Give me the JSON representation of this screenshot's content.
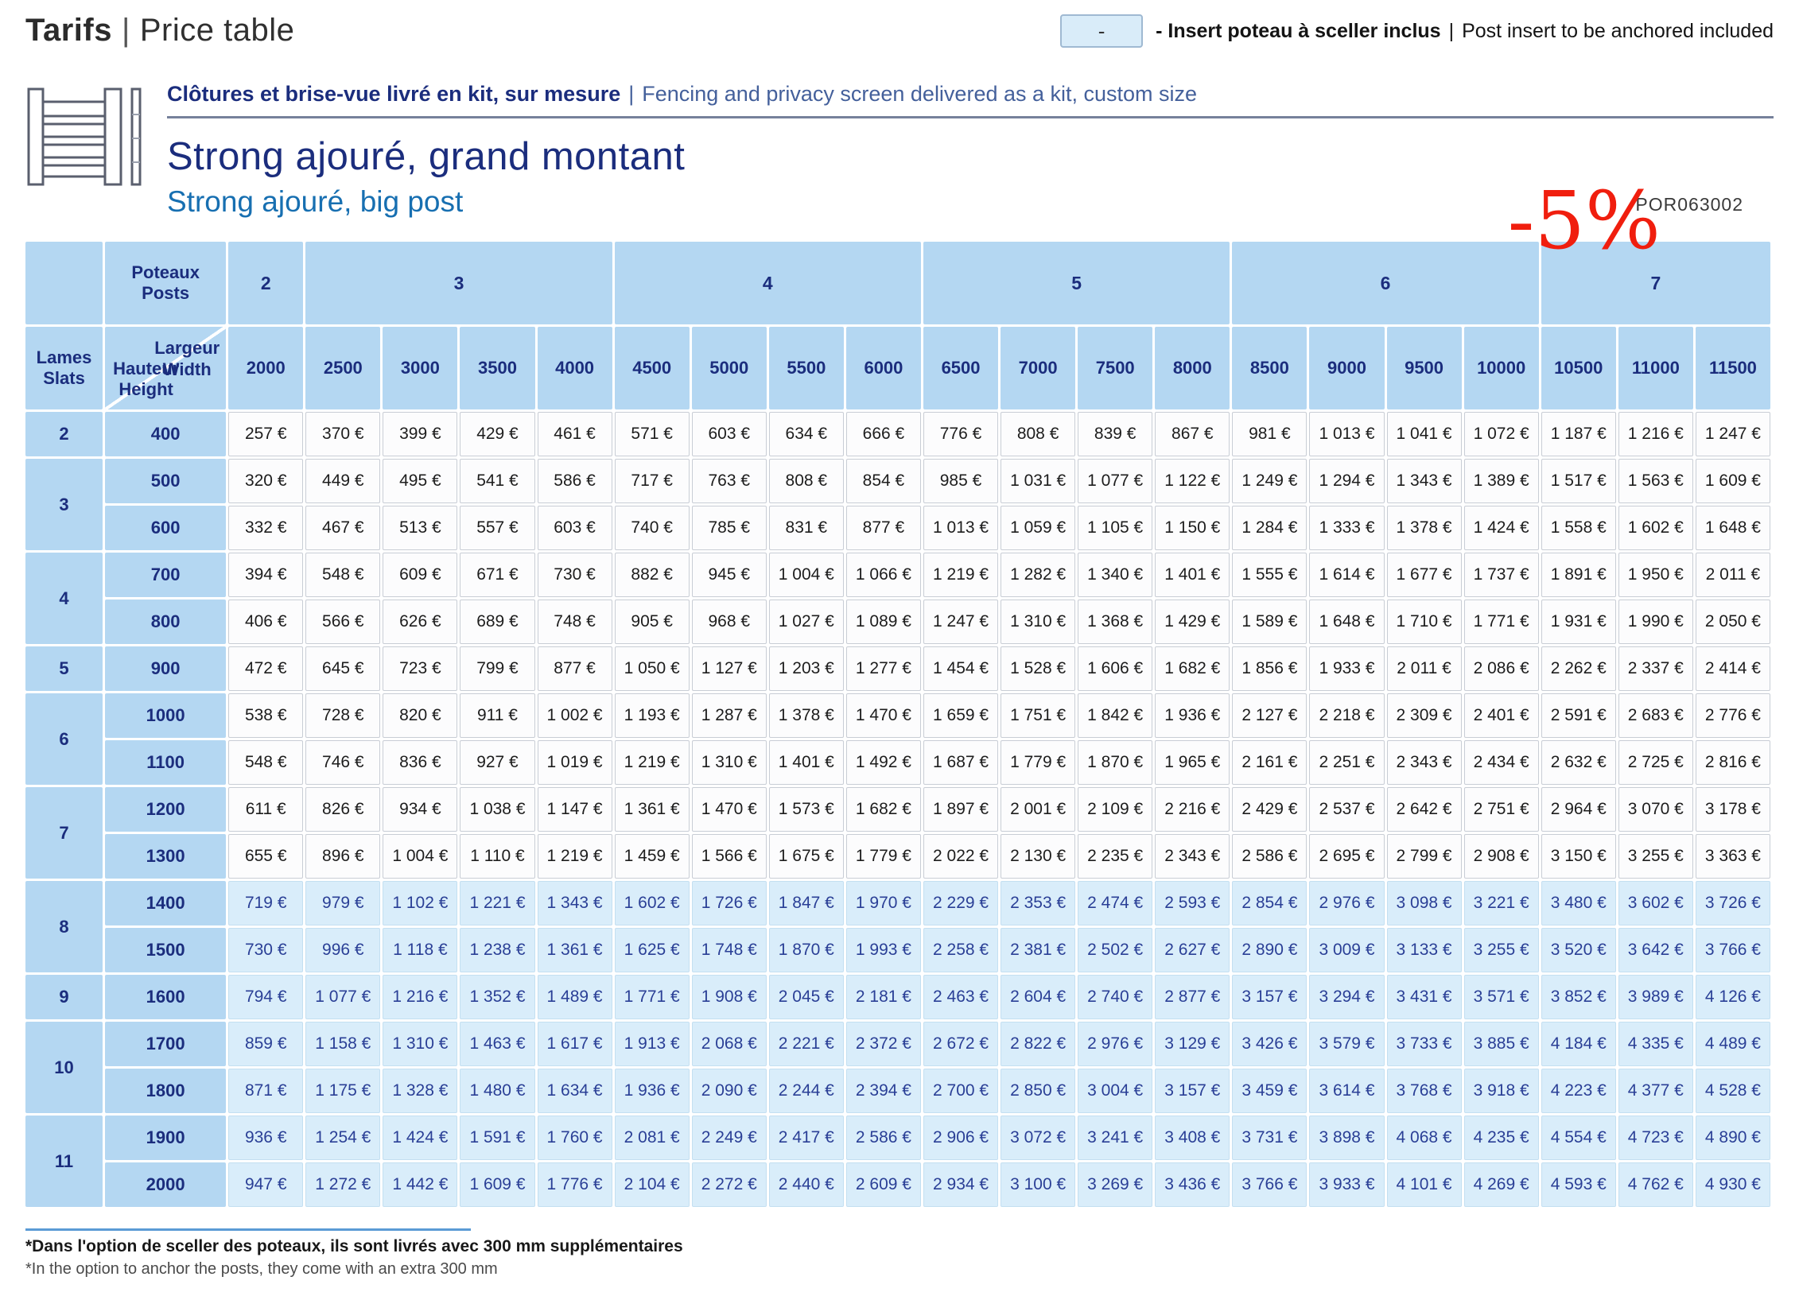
{
  "page": {
    "title_fr": "Tarifs",
    "separator": "|",
    "title_en": "Price table"
  },
  "legend": {
    "symbol": "-",
    "dash": "-",
    "label_fr": "Insert poteau à sceller inclus",
    "separator": "|",
    "label_en": "Post insert to be anchored included"
  },
  "product": {
    "kit_line_fr": "Clôtures et brise-vue livré en kit, sur mesure",
    "kit_line_en": "Fencing and privacy screen delivered as a kit, custom size",
    "name_fr": "Strong ajouré, grand montant",
    "name_en": "Strong ajouré, big post",
    "discount": "-5%",
    "reference": "POR063002"
  },
  "colors": {
    "header_bg": "#b4d7f2",
    "navy_text": "#1b2d7d",
    "product_blue": "#176fb1",
    "highlight_bg": "#d9edfa",
    "highlight_text": "#2a3f96",
    "discount_red": "#f01e0e",
    "footnote_rule_blue": "#5b9bd5"
  },
  "table": {
    "corner_labels": {
      "poteaux": "Poteaux",
      "posts": "Posts",
      "lames": "Lames",
      "slats": "Slats",
      "largeur": "Largeur",
      "width": "Width",
      "hauteur": "Hauteur",
      "height": "Height"
    },
    "posts_groups": [
      {
        "label": "2",
        "span": 1
      },
      {
        "label": "3",
        "span": 4
      },
      {
        "label": "4",
        "span": 4
      },
      {
        "label": "5",
        "span": 4
      },
      {
        "label": "6",
        "span": 4
      },
      {
        "label": "7",
        "span": 3
      }
    ],
    "widths": [
      "2000",
      "2500",
      "3000",
      "3500",
      "4000",
      "4500",
      "5000",
      "5500",
      "6000",
      "6500",
      "7000",
      "7500",
      "8000",
      "8500",
      "9000",
      "9500",
      "10000",
      "10500",
      "11000",
      "11500"
    ],
    "rows": [
      {
        "slats": "2",
        "slats_span": 1,
        "height": "400",
        "highlight": false,
        "prices": [
          "257 €",
          "370 €",
          "399 €",
          "429 €",
          "461 €",
          "571 €",
          "603 €",
          "634 €",
          "666 €",
          "776 €",
          "808 €",
          "839 €",
          "867 €",
          "981 €",
          "1 013 €",
          "1 041 €",
          "1 072 €",
          "1 187 €",
          "1 216 €",
          "1 247 €"
        ]
      },
      {
        "slats": "3",
        "slats_span": 2,
        "height": "500",
        "highlight": false,
        "prices": [
          "320 €",
          "449 €",
          "495 €",
          "541 €",
          "586 €",
          "717 €",
          "763 €",
          "808 €",
          "854 €",
          "985 €",
          "1 031 €",
          "1 077 €",
          "1 122 €",
          "1 249 €",
          "1 294 €",
          "1 343 €",
          "1 389 €",
          "1 517 €",
          "1 563 €",
          "1 609 €"
        ]
      },
      {
        "slats": null,
        "slats_span": 0,
        "height": "600",
        "highlight": false,
        "prices": [
          "332 €",
          "467 €",
          "513 €",
          "557 €",
          "603 €",
          "740 €",
          "785 €",
          "831 €",
          "877 €",
          "1 013 €",
          "1 059 €",
          "1 105 €",
          "1 150 €",
          "1 284 €",
          "1 333 €",
          "1 378 €",
          "1 424 €",
          "1 558 €",
          "1 602 €",
          "1 648 €"
        ]
      },
      {
        "slats": "4",
        "slats_span": 2,
        "height": "700",
        "highlight": false,
        "prices": [
          "394 €",
          "548 €",
          "609 €",
          "671 €",
          "730 €",
          "882 €",
          "945 €",
          "1 004 €",
          "1 066 €",
          "1 219 €",
          "1 282 €",
          "1 340 €",
          "1 401 €",
          "1 555 €",
          "1 614 €",
          "1 677 €",
          "1 737 €",
          "1 891 €",
          "1 950 €",
          "2 011 €"
        ]
      },
      {
        "slats": null,
        "slats_span": 0,
        "height": "800",
        "highlight": false,
        "prices": [
          "406 €",
          "566 €",
          "626 €",
          "689 €",
          "748 €",
          "905 €",
          "968 €",
          "1 027 €",
          "1 089 €",
          "1 247 €",
          "1 310 €",
          "1 368 €",
          "1 429 €",
          "1 589 €",
          "1 648 €",
          "1 710 €",
          "1 771 €",
          "1 931 €",
          "1 990 €",
          "2 050 €"
        ]
      },
      {
        "slats": "5",
        "slats_span": 1,
        "height": "900",
        "highlight": false,
        "prices": [
          "472 €",
          "645 €",
          "723 €",
          "799 €",
          "877 €",
          "1 050 €",
          "1 127 €",
          "1 203 €",
          "1 277 €",
          "1 454 €",
          "1 528 €",
          "1 606 €",
          "1 682 €",
          "1 856 €",
          "1 933 €",
          "2 011 €",
          "2 086 €",
          "2 262 €",
          "2 337 €",
          "2 414 €"
        ]
      },
      {
        "slats": "6",
        "slats_span": 2,
        "height": "1000",
        "highlight": false,
        "prices": [
          "538 €",
          "728 €",
          "820 €",
          "911 €",
          "1 002 €",
          "1 193 €",
          "1 287 €",
          "1 378 €",
          "1 470 €",
          "1 659 €",
          "1 751 €",
          "1 842 €",
          "1 936 €",
          "2 127 €",
          "2 218 €",
          "2 309 €",
          "2 401 €",
          "2 591 €",
          "2 683 €",
          "2 776 €"
        ]
      },
      {
        "slats": null,
        "slats_span": 0,
        "height": "1100",
        "highlight": false,
        "prices": [
          "548 €",
          "746 €",
          "836 €",
          "927 €",
          "1 019 €",
          "1 219 €",
          "1 310 €",
          "1 401 €",
          "1 492 €",
          "1 687 €",
          "1 779 €",
          "1 870 €",
          "1 965 €",
          "2 161 €",
          "2 251 €",
          "2 343 €",
          "2 434 €",
          "2 632 €",
          "2 725 €",
          "2 816 €"
        ]
      },
      {
        "slats": "7",
        "slats_span": 2,
        "height": "1200",
        "highlight": false,
        "prices": [
          "611 €",
          "826 €",
          "934 €",
          "1 038 €",
          "1 147 €",
          "1 361 €",
          "1 470 €",
          "1 573 €",
          "1 682 €",
          "1 897 €",
          "2 001 €",
          "2 109 €",
          "2 216 €",
          "2 429 €",
          "2 537 €",
          "2 642 €",
          "2 751 €",
          "2 964 €",
          "3 070 €",
          "3 178 €"
        ]
      },
      {
        "slats": null,
        "slats_span": 0,
        "height": "1300",
        "highlight": false,
        "prices": [
          "655 €",
          "896 €",
          "1 004 €",
          "1 110 €",
          "1 219 €",
          "1 459 €",
          "1 566 €",
          "1 675 €",
          "1 779 €",
          "2 022 €",
          "2 130 €",
          "2 235 €",
          "2 343 €",
          "2 586 €",
          "2 695 €",
          "2 799 €",
          "2 908 €",
          "3 150 €",
          "3 255 €",
          "3 363 €"
        ]
      },
      {
        "slats": "8",
        "slats_span": 2,
        "height": "1400",
        "highlight": true,
        "prices": [
          "719 €",
          "979 €",
          "1 102 €",
          "1 221 €",
          "1 343 €",
          "1 602 €",
          "1 726 €",
          "1 847 €",
          "1 970 €",
          "2 229 €",
          "2 353 €",
          "2 474 €",
          "2 593 €",
          "2 854 €",
          "2 976 €",
          "3 098 €",
          "3 221 €",
          "3 480 €",
          "3 602 €",
          "3 726 €"
        ]
      },
      {
        "slats": null,
        "slats_span": 0,
        "height": "1500",
        "highlight": true,
        "prices": [
          "730 €",
          "996 €",
          "1 118 €",
          "1 238 €",
          "1 361 €",
          "1 625 €",
          "1 748 €",
          "1 870 €",
          "1 993 €",
          "2 258 €",
          "2 381 €",
          "2 502 €",
          "2 627 €",
          "2 890 €",
          "3 009 €",
          "3 133 €",
          "3 255 €",
          "3 520 €",
          "3 642 €",
          "3 766 €"
        ]
      },
      {
        "slats": "9",
        "slats_span": 1,
        "height": "1600",
        "highlight": true,
        "prices": [
          "794 €",
          "1 077 €",
          "1 216 €",
          "1 352 €",
          "1 489 €",
          "1 771 €",
          "1 908 €",
          "2 045 €",
          "2 181 €",
          "2 463 €",
          "2 604 €",
          "2 740 €",
          "2 877 €",
          "3 157 €",
          "3 294 €",
          "3 431 €",
          "3 571 €",
          "3 852 €",
          "3 989 €",
          "4 126 €"
        ]
      },
      {
        "slats": "10",
        "slats_span": 2,
        "height": "1700",
        "highlight": true,
        "prices": [
          "859 €",
          "1 158 €",
          "1 310 €",
          "1 463 €",
          "1 617 €",
          "1 913 €",
          "2 068 €",
          "2 221 €",
          "2 372 €",
          "2 672 €",
          "2 822 €",
          "2 976 €",
          "3 129 €",
          "3 426 €",
          "3 579 €",
          "3 733 €",
          "3 885 €",
          "4 184 €",
          "4 335 €",
          "4 489 €"
        ]
      },
      {
        "slats": null,
        "slats_span": 0,
        "height": "1800",
        "highlight": true,
        "prices": [
          "871 €",
          "1 175 €",
          "1 328 €",
          "1 480 €",
          "1 634 €",
          "1 936 €",
          "2 090 €",
          "2 244 €",
          "2 394 €",
          "2 700 €",
          "2 850 €",
          "3 004 €",
          "3 157 €",
          "3 459 €",
          "3 614 €",
          "3 768 €",
          "3 918 €",
          "4 223 €",
          "4 377 €",
          "4 528 €"
        ]
      },
      {
        "slats": "11",
        "slats_span": 2,
        "height": "1900",
        "highlight": true,
        "prices": [
          "936 €",
          "1 254 €",
          "1 424 €",
          "1 591 €",
          "1 760 €",
          "2 081 €",
          "2 249 €",
          "2 417 €",
          "2 586 €",
          "2 906 €",
          "3 072 €",
          "3 241 €",
          "3 408 €",
          "3 731 €",
          "3 898 €",
          "4 068 €",
          "4 235 €",
          "4 554 €",
          "4 723 €",
          "4 890 €"
        ]
      },
      {
        "slats": null,
        "slats_span": 0,
        "height": "2000",
        "highlight": true,
        "prices": [
          "947 €",
          "1 272 €",
          "1 442 €",
          "1 609 €",
          "1 776 €",
          "2 104 €",
          "2 272 €",
          "2 440 €",
          "2 609 €",
          "2 934 €",
          "3 100 €",
          "3 269 €",
          "3 436 €",
          "3 766 €",
          "3 933 €",
          "4 101 €",
          "4 269 €",
          "4 593 €",
          "4 762 €",
          "4 930 €"
        ]
      }
    ]
  },
  "footnote": {
    "fr": "*Dans l'option de sceller des poteaux, ils sont livrés avec 300 mm supplémentaires",
    "en": "*In the option to anchor the posts, they come with an extra 300 mm"
  }
}
